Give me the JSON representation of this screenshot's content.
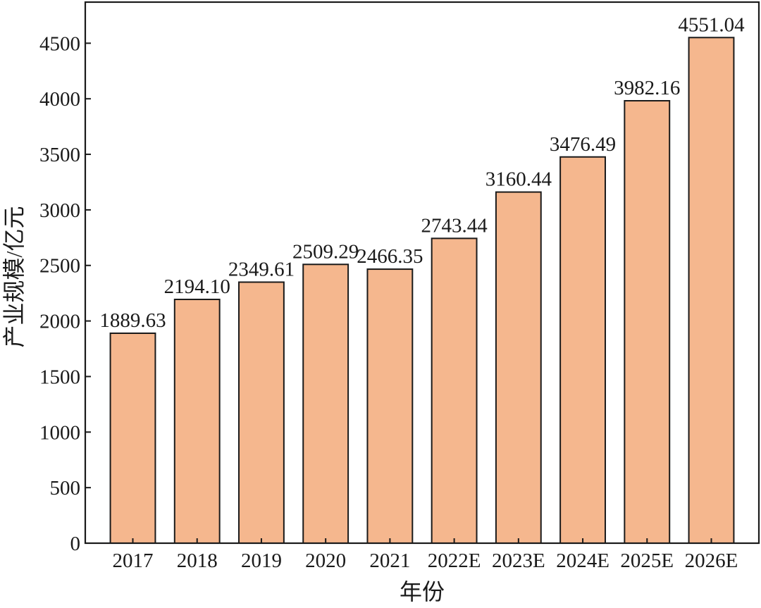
{
  "chart_data": {
    "type": "bar",
    "title": "",
    "xlabel": "年份",
    "ylabel": "产业规模/亿元",
    "categories": [
      "2017",
      "2018",
      "2019",
      "2020",
      "2021",
      "2022E",
      "2023E",
      "2024E",
      "2025E",
      "2026E"
    ],
    "values": [
      1889.63,
      2194.1,
      2349.61,
      2509.29,
      2466.35,
      2743.44,
      3160.44,
      3476.49,
      3982.16,
      4551.04
    ],
    "value_labels": [
      "1889.63",
      "2194.10",
      "2349.61",
      "2509.29",
      "2466.35",
      "2743.44",
      "3160.44",
      "3476.49",
      "3982.16",
      "4551.04"
    ],
    "yticks": [
      "0",
      "500",
      "1000",
      "1500",
      "2000",
      "2500",
      "3000",
      "3500",
      "4000",
      "4500"
    ],
    "ylim": [
      0,
      4870
    ],
    "grid": false,
    "legend": "none",
    "colors": {
      "bar_fill": "#f5b78e",
      "bar_stroke": "#1a1a1a",
      "axis": "#1a1a1a"
    }
  }
}
